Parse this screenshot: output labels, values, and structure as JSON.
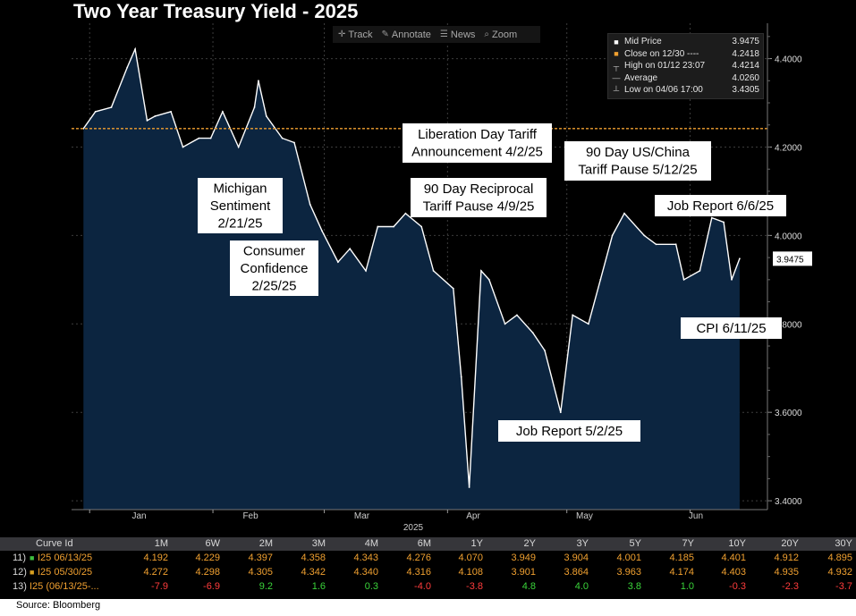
{
  "chart_data": {
    "type": "line",
    "title": "Two Year Treasury Yield - 2025",
    "series": [
      {
        "name": "Mid Price",
        "x": [
          "2024-12-30",
          "2025-01-02",
          "2025-01-06",
          "2025-01-10",
          "2025-01-12",
          "2025-01-15",
          "2025-01-17",
          "2025-01-21",
          "2025-01-24",
          "2025-01-28",
          "2025-01-31",
          "2025-02-03",
          "2025-02-07",
          "2025-02-11",
          "2025-02-12",
          "2025-02-14",
          "2025-02-18",
          "2025-02-21",
          "2025-02-25",
          "2025-02-28",
          "2025-03-04",
          "2025-03-07",
          "2025-03-11",
          "2025-03-14",
          "2025-03-18",
          "2025-03-21",
          "2025-03-25",
          "2025-03-28",
          "2025-04-02",
          "2025-04-04",
          "2025-04-06",
          "2025-04-09",
          "2025-04-11",
          "2025-04-15",
          "2025-04-18",
          "2025-04-22",
          "2025-04-25",
          "2025-04-29",
          "2025-05-02",
          "2025-05-06",
          "2025-05-09",
          "2025-05-12",
          "2025-05-15",
          "2025-05-20",
          "2025-05-23",
          "2025-05-28",
          "2025-05-30",
          "2025-06-03",
          "2025-06-06",
          "2025-06-09",
          "2025-06-11",
          "2025-06-13"
        ],
        "values": [
          4.2418,
          4.28,
          4.29,
          4.38,
          4.4214,
          4.26,
          4.27,
          4.28,
          4.2,
          4.22,
          4.22,
          4.28,
          4.2,
          4.29,
          4.35,
          4.27,
          4.22,
          4.21,
          4.07,
          4.01,
          3.94,
          3.97,
          3.92,
          4.02,
          4.02,
          4.05,
          4.02,
          3.92,
          3.88,
          3.68,
          3.4305,
          3.92,
          3.9,
          3.8,
          3.82,
          3.78,
          3.74,
          3.6,
          3.82,
          3.8,
          3.9,
          4.0,
          4.05,
          4.0,
          3.98,
          3.98,
          3.9,
          3.92,
          4.04,
          4.03,
          3.9,
          3.9475
        ]
      }
    ],
    "reference_line": {
      "name": "Close on 12/30",
      "value": 4.2418
    },
    "ylim": [
      3.38,
      4.48
    ],
    "y_ticks": [
      "4.4000",
      "4.2000",
      "4.0000",
      "3.8000",
      "3.6000",
      "3.4000"
    ],
    "x_ticks": [
      "Jan",
      "Feb",
      "Mar",
      "Apr",
      "May",
      "Jun"
    ],
    "x_year_label": "2025",
    "last_value_label": "3.9475",
    "annotations": [
      {
        "lines": [
          "Michigan",
          "Sentiment",
          "2/21/25"
        ]
      },
      {
        "lines": [
          "Consumer",
          "Confidence",
          "2/25/25"
        ]
      },
      {
        "lines": [
          "Liberation Day Tariff",
          "Announcement 4/2/25"
        ]
      },
      {
        "lines": [
          "90 Day Reciprocal",
          "Tariff Pause 4/9/25"
        ]
      },
      {
        "lines": [
          "90 Day US/China",
          "Tariff Pause 5/12/25"
        ]
      },
      {
        "lines": [
          "Job Report 5/2/25"
        ]
      },
      {
        "lines": [
          "Job Report 6/6/25"
        ]
      },
      {
        "lines": [
          "CPI 6/11/25"
        ]
      }
    ],
    "colors": {
      "background": "#000000",
      "area": "#0c2540",
      "price": "#ffffff",
      "reference": "#f0a030",
      "grid": "#3c3c3c"
    }
  },
  "toolbar": {
    "items": [
      {
        "icon": "crosshair-icon",
        "label": "Track"
      },
      {
        "icon": "pencil-icon",
        "label": "Annotate"
      },
      {
        "icon": "news-icon",
        "label": "News"
      },
      {
        "icon": "zoom-icon",
        "label": "Zoom"
      }
    ]
  },
  "legend": {
    "rows": [
      {
        "label": "Mid Price",
        "value": "3.9475"
      },
      {
        "label": "Close on 12/30 ----",
        "value": "4.2418"
      },
      {
        "label": "High on 01/12 23:07",
        "value": "4.4214"
      },
      {
        "label": "Average",
        "value": "4.0260"
      },
      {
        "label": "Low on 04/06 17:00",
        "value": "3.4305"
      }
    ]
  },
  "table": {
    "header": {
      "id": "Curve Id",
      "cols": [
        "1M",
        "6W",
        "2M",
        "3M",
        "4M",
        "6M",
        "1Y",
        "2Y",
        "3Y",
        "5Y",
        "7Y",
        "10Y",
        "20Y",
        "30Y"
      ]
    },
    "rows": [
      {
        "num": "11)",
        "id": "I25 06/13/25",
        "values": [
          "4.192",
          "4.229",
          "4.397",
          "4.358",
          "4.343",
          "4.276",
          "4.070",
          "3.949",
          "3.904",
          "4.001",
          "4.185",
          "4.401",
          "4.912",
          "4.895"
        ]
      },
      {
        "num": "12)",
        "id": "I25 05/30/25",
        "values": [
          "4.272",
          "4.298",
          "4.305",
          "4.342",
          "4.340",
          "4.316",
          "4.108",
          "3.901",
          "3.864",
          "3.963",
          "4.174",
          "4.403",
          "4.935",
          "4.932"
        ]
      },
      {
        "num": "13)",
        "id": "I25 (06/13/25-...",
        "values": [
          "-7.9",
          "-6.9",
          "9.2",
          "1.6",
          "0.3",
          "-4.0",
          "-3.8",
          "4.8",
          "4.0",
          "3.8",
          "1.0",
          "-0.3",
          "-2.3",
          "-3.7"
        ]
      }
    ]
  },
  "source": "Source: Bloomberg"
}
